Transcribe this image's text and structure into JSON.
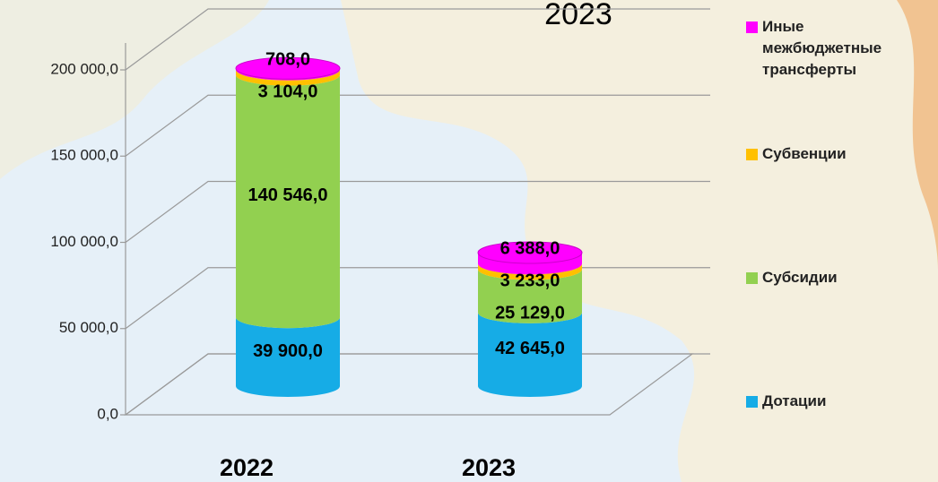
{
  "chart_data": {
    "type": "bar3d_stacked_cylinder",
    "title": "2023",
    "categories": [
      "2022",
      "2023"
    ],
    "series": [
      {
        "name": "Дотации",
        "color": "#16ace6",
        "values": [
          39900,
          42645
        ],
        "value_labels": [
          "39 900,0",
          "42 645,0"
        ]
      },
      {
        "name": "Субсидии",
        "color": "#92d050",
        "values": [
          140546,
          25129
        ],
        "value_labels": [
          "140 546,0",
          "25 129,0"
        ]
      },
      {
        "name": "Субвенции",
        "color": "#ffc000",
        "values": [
          3104,
          3233
        ],
        "value_labels": [
          "3 104,0",
          "3 233,0"
        ]
      },
      {
        "name": "Иные межбюджетные трансферты",
        "color": "#ff00ff",
        "values": [
          708,
          6388
        ],
        "value_labels": [
          "708,0",
          "6 388,0"
        ]
      }
    ],
    "ylim": [
      0,
      200000
    ],
    "yticks": [
      {
        "value": 0,
        "label": "0,0"
      },
      {
        "value": 50000,
        "label": "50 000,0"
      },
      {
        "value": 100000,
        "label": "100 000,0"
      },
      {
        "value": 150000,
        "label": "150 000,0"
      },
      {
        "value": 200000,
        "label": "200 000,0"
      }
    ],
    "grid": true,
    "legend": "right"
  }
}
